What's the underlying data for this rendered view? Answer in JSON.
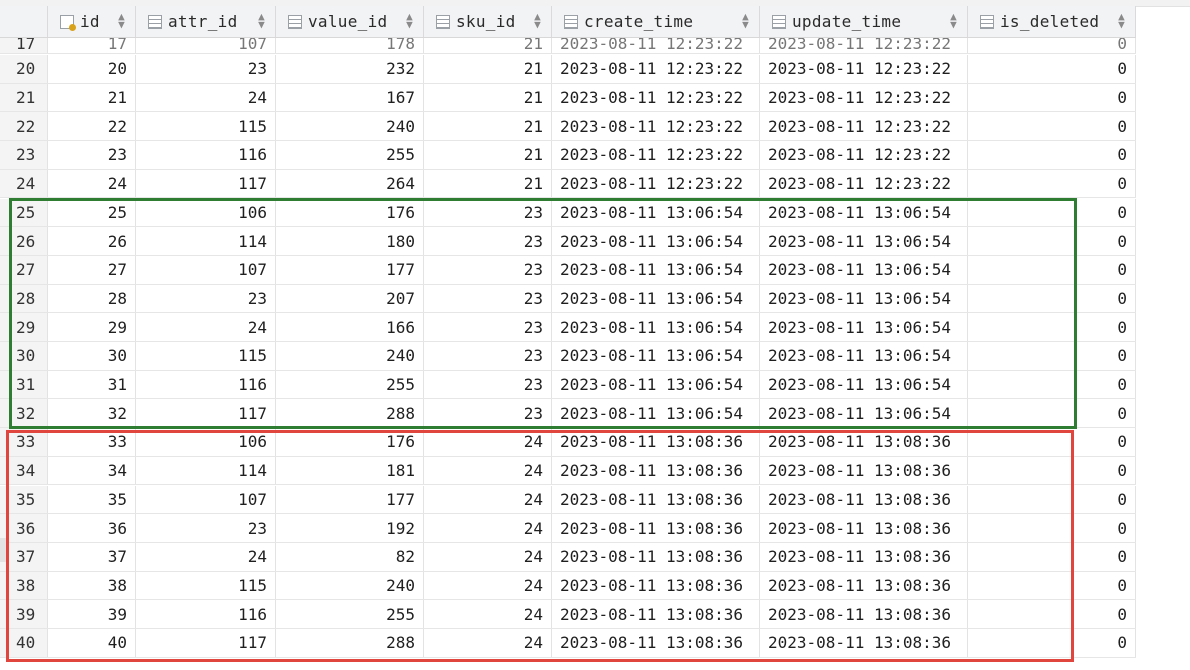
{
  "columns": [
    {
      "label": "",
      "icon": ""
    },
    {
      "label": "id",
      "icon": "primary-key-icon"
    },
    {
      "label": "attr_id",
      "icon": "column-icon"
    },
    {
      "label": "value_id",
      "icon": "column-icon"
    },
    {
      "label": "sku_id",
      "icon": "column-icon"
    },
    {
      "label": "create_time",
      "icon": "column-icon"
    },
    {
      "label": "update_time",
      "icon": "column-icon"
    },
    {
      "label": "is_deleted",
      "icon": "column-icon"
    }
  ],
  "partial_row": {
    "rownum": "17",
    "id": "17",
    "attr_id": "107",
    "value_id": "178",
    "sku_id": "21",
    "create_time": "2023-08-11 12:23:22",
    "update_time": "2023-08-11 12:23:22",
    "is_deleted": "0"
  },
  "rows": [
    {
      "rownum": "20",
      "id": "20",
      "attr_id": "23",
      "value_id": "232",
      "sku_id": "21",
      "create_time": "2023-08-11 12:23:22",
      "update_time": "2023-08-11 12:23:22",
      "is_deleted": "0"
    },
    {
      "rownum": "21",
      "id": "21",
      "attr_id": "24",
      "value_id": "167",
      "sku_id": "21",
      "create_time": "2023-08-11 12:23:22",
      "update_time": "2023-08-11 12:23:22",
      "is_deleted": "0"
    },
    {
      "rownum": "22",
      "id": "22",
      "attr_id": "115",
      "value_id": "240",
      "sku_id": "21",
      "create_time": "2023-08-11 12:23:22",
      "update_time": "2023-08-11 12:23:22",
      "is_deleted": "0"
    },
    {
      "rownum": "23",
      "id": "23",
      "attr_id": "116",
      "value_id": "255",
      "sku_id": "21",
      "create_time": "2023-08-11 12:23:22",
      "update_time": "2023-08-11 12:23:22",
      "is_deleted": "0"
    },
    {
      "rownum": "24",
      "id": "24",
      "attr_id": "117",
      "value_id": "264",
      "sku_id": "21",
      "create_time": "2023-08-11 12:23:22",
      "update_time": "2023-08-11 12:23:22",
      "is_deleted": "0"
    },
    {
      "rownum": "25",
      "id": "25",
      "attr_id": "106",
      "value_id": "176",
      "sku_id": "23",
      "create_time": "2023-08-11 13:06:54",
      "update_time": "2023-08-11 13:06:54",
      "is_deleted": "0"
    },
    {
      "rownum": "26",
      "id": "26",
      "attr_id": "114",
      "value_id": "180",
      "sku_id": "23",
      "create_time": "2023-08-11 13:06:54",
      "update_time": "2023-08-11 13:06:54",
      "is_deleted": "0"
    },
    {
      "rownum": "27",
      "id": "27",
      "attr_id": "107",
      "value_id": "177",
      "sku_id": "23",
      "create_time": "2023-08-11 13:06:54",
      "update_time": "2023-08-11 13:06:54",
      "is_deleted": "0"
    },
    {
      "rownum": "28",
      "id": "28",
      "attr_id": "23",
      "value_id": "207",
      "sku_id": "23",
      "create_time": "2023-08-11 13:06:54",
      "update_time": "2023-08-11 13:06:54",
      "is_deleted": "0"
    },
    {
      "rownum": "29",
      "id": "29",
      "attr_id": "24",
      "value_id": "166",
      "sku_id": "23",
      "create_time": "2023-08-11 13:06:54",
      "update_time": "2023-08-11 13:06:54",
      "is_deleted": "0"
    },
    {
      "rownum": "30",
      "id": "30",
      "attr_id": "115",
      "value_id": "240",
      "sku_id": "23",
      "create_time": "2023-08-11 13:06:54",
      "update_time": "2023-08-11 13:06:54",
      "is_deleted": "0"
    },
    {
      "rownum": "31",
      "id": "31",
      "attr_id": "116",
      "value_id": "255",
      "sku_id": "23",
      "create_time": "2023-08-11 13:06:54",
      "update_time": "2023-08-11 13:06:54",
      "is_deleted": "0"
    },
    {
      "rownum": "32",
      "id": "32",
      "attr_id": "117",
      "value_id": "288",
      "sku_id": "23",
      "create_time": "2023-08-11 13:06:54",
      "update_time": "2023-08-11 13:06:54",
      "is_deleted": "0"
    },
    {
      "rownum": "33",
      "id": "33",
      "attr_id": "106",
      "value_id": "176",
      "sku_id": "24",
      "create_time": "2023-08-11 13:08:36",
      "update_time": "2023-08-11 13:08:36",
      "is_deleted": "0"
    },
    {
      "rownum": "34",
      "id": "34",
      "attr_id": "114",
      "value_id": "181",
      "sku_id": "24",
      "create_time": "2023-08-11 13:08:36",
      "update_time": "2023-08-11 13:08:36",
      "is_deleted": "0"
    },
    {
      "rownum": "35",
      "id": "35",
      "attr_id": "107",
      "value_id": "177",
      "sku_id": "24",
      "create_time": "2023-08-11 13:08:36",
      "update_time": "2023-08-11 13:08:36",
      "is_deleted": "0"
    },
    {
      "rownum": "36",
      "id": "36",
      "attr_id": "23",
      "value_id": "192",
      "sku_id": "24",
      "create_time": "2023-08-11 13:08:36",
      "update_time": "2023-08-11 13:08:36",
      "is_deleted": "0"
    },
    {
      "rownum": "37",
      "id": "37",
      "attr_id": "24",
      "value_id": "82",
      "sku_id": "24",
      "create_time": "2023-08-11 13:08:36",
      "update_time": "2023-08-11 13:08:36",
      "is_deleted": "0"
    },
    {
      "rownum": "38",
      "id": "38",
      "attr_id": "115",
      "value_id": "240",
      "sku_id": "24",
      "create_time": "2023-08-11 13:08:36",
      "update_time": "2023-08-11 13:08:36",
      "is_deleted": "0"
    },
    {
      "rownum": "39",
      "id": "39",
      "attr_id": "116",
      "value_id": "255",
      "sku_id": "24",
      "create_time": "2023-08-11 13:08:36",
      "update_time": "2023-08-11 13:08:36",
      "is_deleted": "0"
    },
    {
      "rownum": "40",
      "id": "40",
      "attr_id": "117",
      "value_id": "288",
      "sku_id": "24",
      "create_time": "2023-08-11 13:08:36",
      "update_time": "2023-08-11 13:08:36",
      "is_deleted": "0"
    }
  ],
  "highlights": {
    "green": "#2e7d32",
    "red": "#e0463e"
  }
}
